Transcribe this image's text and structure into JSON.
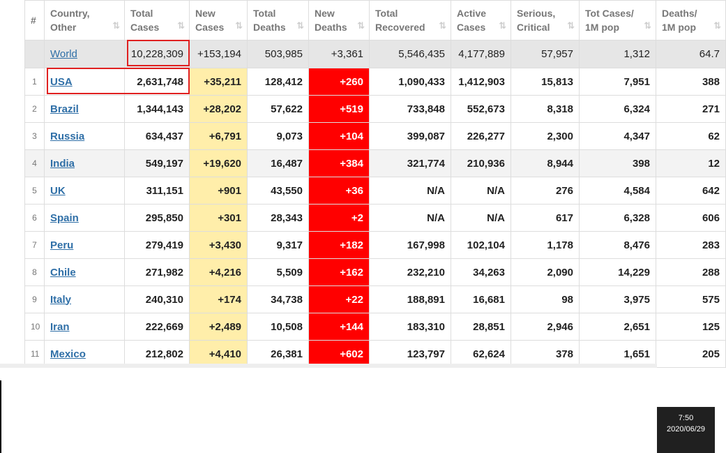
{
  "table": {
    "headers": [
      [
        "#"
      ],
      [
        "Country,",
        "Other"
      ],
      [
        "Total",
        "Cases"
      ],
      [
        "New",
        "Cases"
      ],
      [
        "Total",
        "Deaths"
      ],
      [
        "New",
        "Deaths"
      ],
      [
        "Total",
        "Recovered"
      ],
      [
        "Active",
        "Cases"
      ],
      [
        "Serious,",
        "Critical"
      ],
      [
        "Tot Cases/",
        "1M pop"
      ],
      [
        "Deaths/",
        "1M pop"
      ]
    ],
    "world": {
      "country": "World",
      "values": [
        "10,228,309",
        "+153,194",
        "503,985",
        "+3,361",
        "5,546,435",
        "4,177,889",
        "57,957",
        "1,312",
        "64.7"
      ]
    },
    "rows": [
      {
        "rank": "1",
        "country": "USA",
        "values": [
          "2,631,748",
          "+35,211",
          "128,412",
          "+260",
          "1,090,433",
          "1,412,903",
          "15,813",
          "7,951",
          "388"
        ]
      },
      {
        "rank": "2",
        "country": "Brazil",
        "values": [
          "1,344,143",
          "+28,202",
          "57,622",
          "+519",
          "733,848",
          "552,673",
          "8,318",
          "6,324",
          "271"
        ]
      },
      {
        "rank": "3",
        "country": "Russia",
        "values": [
          "634,437",
          "+6,791",
          "9,073",
          "+104",
          "399,087",
          "226,277",
          "2,300",
          "4,347",
          "62"
        ]
      },
      {
        "rank": "4",
        "country": "India",
        "values": [
          "549,197",
          "+19,620",
          "16,487",
          "+384",
          "321,774",
          "210,936",
          "8,944",
          "398",
          "12"
        ]
      },
      {
        "rank": "5",
        "country": "UK",
        "values": [
          "311,151",
          "+901",
          "43,550",
          "+36",
          "N/A",
          "N/A",
          "276",
          "4,584",
          "642"
        ]
      },
      {
        "rank": "6",
        "country": "Spain",
        "values": [
          "295,850",
          "+301",
          "28,343",
          "+2",
          "N/A",
          "N/A",
          "617",
          "6,328",
          "606"
        ]
      },
      {
        "rank": "7",
        "country": "Peru",
        "values": [
          "279,419",
          "+3,430",
          "9,317",
          "+182",
          "167,998",
          "102,104",
          "1,178",
          "8,476",
          "283"
        ]
      },
      {
        "rank": "8",
        "country": "Chile",
        "values": [
          "271,982",
          "+4,216",
          "5,509",
          "+162",
          "232,210",
          "34,263",
          "2,090",
          "14,229",
          "288"
        ]
      },
      {
        "rank": "9",
        "country": "Italy",
        "values": [
          "240,310",
          "+174",
          "34,738",
          "+22",
          "188,891",
          "16,681",
          "98",
          "3,975",
          "575"
        ]
      },
      {
        "rank": "10",
        "country": "Iran",
        "values": [
          "222,669",
          "+2,489",
          "10,508",
          "+144",
          "183,310",
          "28,851",
          "2,946",
          "2,651",
          "125"
        ]
      },
      {
        "rank": "11",
        "country": "Mexico",
        "values": [
          "212,802",
          "+4,410",
          "26,381",
          "+602",
          "123,797",
          "62,624",
          "378",
          "1,651",
          "205"
        ]
      }
    ]
  },
  "taskbar": {
    "time": "7:50",
    "date": "2020/06/29"
  }
}
